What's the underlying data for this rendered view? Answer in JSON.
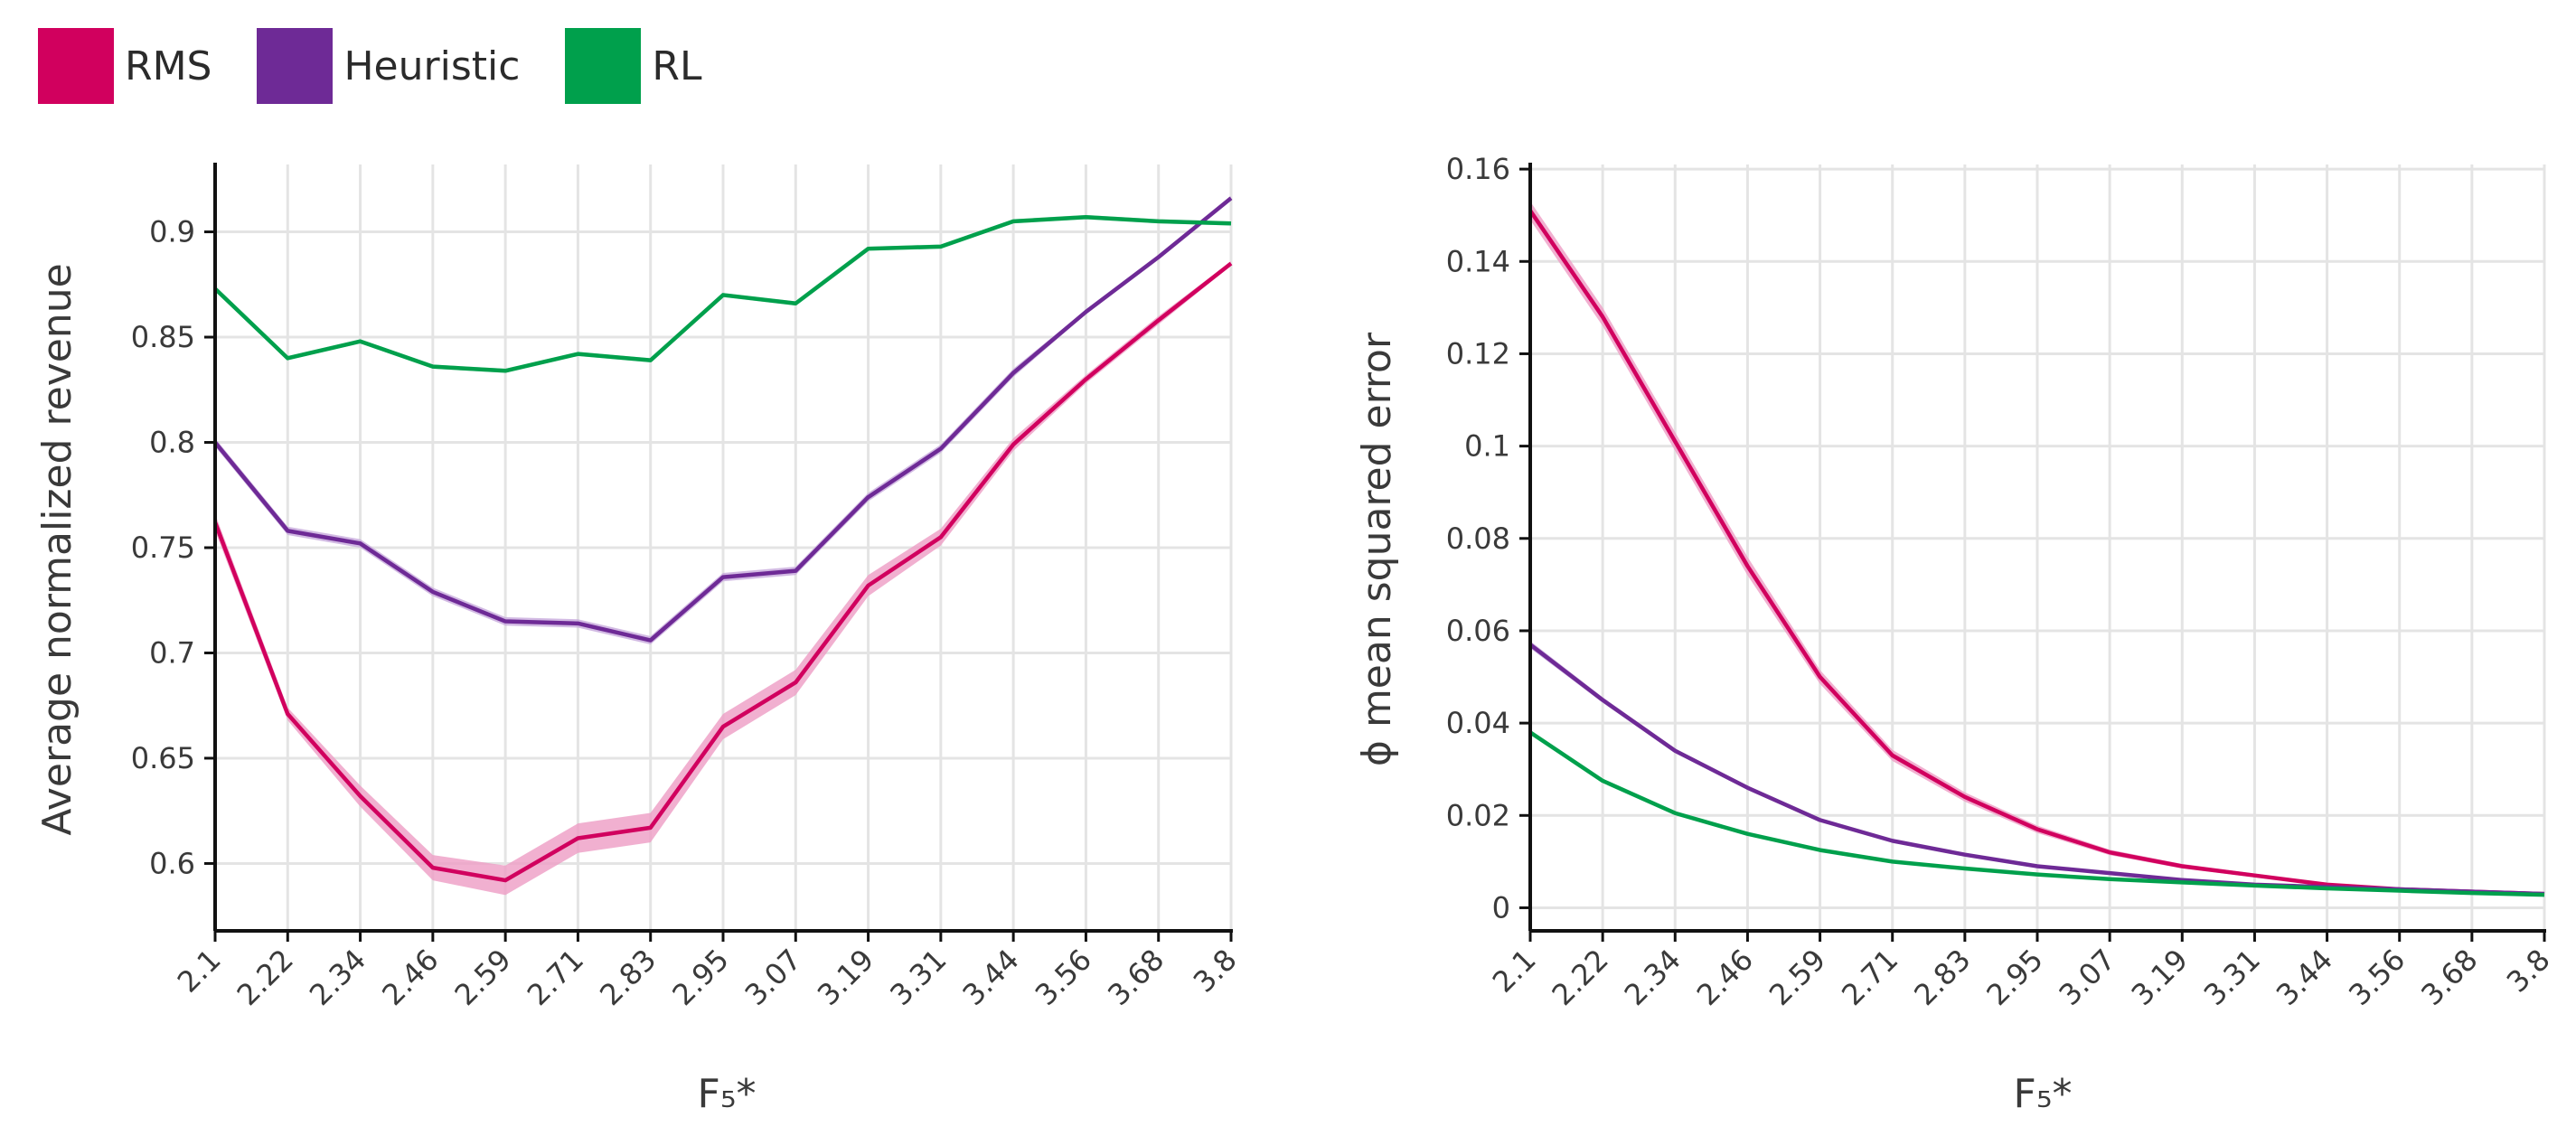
{
  "legend": [
    {
      "label": "RMS",
      "color": "#d1005e"
    },
    {
      "label": "Heuristic",
      "color": "#6e2a96"
    },
    {
      "label": "RL",
      "color": "#00a04c"
    }
  ],
  "chart_data": [
    {
      "type": "line",
      "xlabel": "F₅*",
      "ylabel": "Average normalized revenue",
      "categories": [
        "2.1",
        "2.22",
        "2.34",
        "2.46",
        "2.59",
        "2.71",
        "2.83",
        "2.95",
        "3.07",
        "3.19",
        "3.31",
        "3.44",
        "3.56",
        "3.68",
        "3.8"
      ],
      "ylim": [
        0.568,
        0.932
      ],
      "yticks": [
        0.6,
        0.65,
        0.7,
        0.75,
        0.8,
        0.85,
        0.9
      ],
      "ytick_labels": [
        "0.6",
        "0.65",
        "0.7",
        "0.75",
        "0.8",
        "0.85",
        "0.9"
      ],
      "grid": true,
      "series": [
        {
          "name": "RMS",
          "color": "#d1005e",
          "band_color": "#ee9cc4",
          "values": [
            0.762,
            0.671,
            0.632,
            0.598,
            0.592,
            0.612,
            0.617,
            0.665,
            0.686,
            0.732,
            0.755,
            0.799,
            0.83,
            0.858,
            0.885
          ],
          "band": [
            0.004,
            0.003,
            0.005,
            0.006,
            0.007,
            0.007,
            0.007,
            0.006,
            0.006,
            0.005,
            0.004,
            0.003,
            0.002,
            0.002,
            0.001
          ]
        },
        {
          "name": "Heuristic",
          "color": "#6e2a96",
          "band_color": "#c7a9dc",
          "values": [
            0.8,
            0.758,
            0.752,
            0.729,
            0.715,
            0.714,
            0.706,
            0.736,
            0.739,
            0.774,
            0.797,
            0.833,
            0.862,
            0.888,
            0.916
          ],
          "band": [
            0.002,
            0.002,
            0.002,
            0.002,
            0.002,
            0.002,
            0.002,
            0.002,
            0.002,
            0.002,
            0.002,
            0.002,
            0.001,
            0.001,
            0.001
          ]
        },
        {
          "name": "RL",
          "color": "#00a04c",
          "band_color": "#9ed8b6",
          "values": [
            0.873,
            0.84,
            0.848,
            0.836,
            0.834,
            0.842,
            0.839,
            0.87,
            0.866,
            0.892,
            0.893,
            0.905,
            0.907,
            0.905,
            0.904
          ],
          "band": [
            0.001,
            0.001,
            0.001,
            0.001,
            0.001,
            0.001,
            0.001,
            0.001,
            0.001,
            0.001,
            0.001,
            0.001,
            0.001,
            0.001,
            0.001
          ]
        }
      ]
    },
    {
      "type": "line",
      "xlabel": "F₅*",
      "ylabel": "ϕ mean squared error",
      "categories": [
        "2.1",
        "2.22",
        "2.34",
        "2.46",
        "2.59",
        "2.71",
        "2.83",
        "2.95",
        "3.07",
        "3.19",
        "3.31",
        "3.44",
        "3.56",
        "3.68",
        "3.8"
      ],
      "ylim": [
        -0.005,
        0.161
      ],
      "yticks": [
        0,
        0.02,
        0.04,
        0.06,
        0.08,
        0.1,
        0.12,
        0.14,
        0.16
      ],
      "ytick_labels": [
        "0",
        "0.02",
        "0.04",
        "0.06",
        "0.08",
        "0.1",
        "0.12",
        "0.14",
        "0.16"
      ],
      "grid": true,
      "series": [
        {
          "name": "RMS",
          "color": "#d1005e",
          "band_color": "#ee9cc4",
          "values": [
            0.151,
            0.128,
            0.101,
            0.074,
            0.05,
            0.033,
            0.024,
            0.017,
            0.012,
            0.009,
            0.007,
            0.005,
            0.004,
            0.0035,
            0.003
          ],
          "band": [
            0.002,
            0.002,
            0.002,
            0.002,
            0.0015,
            0.0012,
            0.001,
            0.0008,
            0.0006,
            0.0005,
            0.0004,
            0.0003,
            0.0003,
            0.0002,
            0.0002
          ]
        },
        {
          "name": "Heuristic",
          "color": "#6e2a96",
          "band_color": "#c7a9dc",
          "values": [
            0.057,
            0.045,
            0.034,
            0.026,
            0.019,
            0.0145,
            0.0115,
            0.009,
            0.0075,
            0.006,
            0.005,
            0.0045,
            0.004,
            0.0035,
            0.003
          ],
          "band": [
            0.0008,
            0.0006,
            0.0005,
            0.0004,
            0.0003,
            0.0003,
            0.0002,
            0.0002,
            0.0002,
            0.0002,
            0.0002,
            0.0002,
            0.0002,
            0.0002,
            0.0002
          ]
        },
        {
          "name": "RL",
          "color": "#00a04c",
          "band_color": "#9ed8b6",
          "values": [
            0.038,
            0.0275,
            0.0205,
            0.016,
            0.0125,
            0.01,
            0.0085,
            0.0072,
            0.0062,
            0.0055,
            0.0048,
            0.0042,
            0.0037,
            0.0032,
            0.0028
          ],
          "band": [
            0.0004,
            0.0003,
            0.0003,
            0.0002,
            0.0002,
            0.0002,
            0.0002,
            0.0002,
            0.0002,
            0.0002,
            0.0002,
            0.0002,
            0.0002,
            0.0002,
            0.0002
          ]
        }
      ]
    }
  ]
}
